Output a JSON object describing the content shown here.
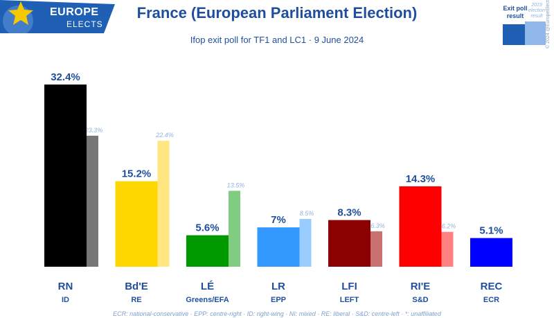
{
  "header": {
    "logo_line1": "EUROPE",
    "logo_line2": "ELECTS",
    "title": "France (European Parliament Election)",
    "subtitle": "Ifop exit poll for TF1 and LC1 · 9 June 2024"
  },
  "legend": {
    "exit_label": "Exit poll result",
    "prev_label": "2019 election result"
  },
  "copyright": "© 2024 @EuropeElects",
  "footnote": "ECR: national-conservative · EPP: centre-right · ID: right-wing · NI: mixed · RE: liberal · S&D: centre-left · *: unaffiliated",
  "colors": {
    "title": "#1f4e9c",
    "logo_bg": "#1f5fb4",
    "star": "#f5c800"
  },
  "chart_data": {
    "type": "bar",
    "title": "France (European Parliament Election)",
    "subtitle": "Ifop exit poll for TF1 and LC1 · 9 June 2024",
    "ylim": [
      0,
      34
    ],
    "grid": false,
    "legend": "top-right",
    "categories": [
      "RN",
      "Bd'E",
      "LÉ",
      "LR",
      "LFI",
      "RI'E",
      "REC"
    ],
    "groups": [
      "ID",
      "RE",
      "Greens/EFA",
      "EPP",
      "LEFT",
      "S&D",
      "ECR"
    ],
    "series": [
      {
        "name": "Exit poll result",
        "values": [
          32.4,
          15.2,
          5.6,
          7,
          8.3,
          14.3,
          5.1
        ],
        "labels": [
          "32.4%",
          "15.2%",
          "5.6%",
          "7%",
          "8.3%",
          "14.3%",
          "5.1%"
        ]
      },
      {
        "name": "2019 election result",
        "values": [
          23.3,
          22.4,
          13.5,
          8.5,
          6.3,
          6.2,
          null
        ],
        "labels": [
          "23.3%",
          "22.4%",
          "13.5%",
          "8.5%",
          "6.3%",
          "6.2%",
          ""
        ]
      }
    ],
    "colors_main": [
      "#000000",
      "#ffd700",
      "#009900",
      "#3399ff",
      "#8b0000",
      "#ff0000",
      "#0000ff"
    ],
    "colors_prev": [
      "#777777",
      "#ffe680",
      "#80cc80",
      "#99ccff",
      "#c97070",
      "#ff8080",
      "#8080ff"
    ]
  }
}
